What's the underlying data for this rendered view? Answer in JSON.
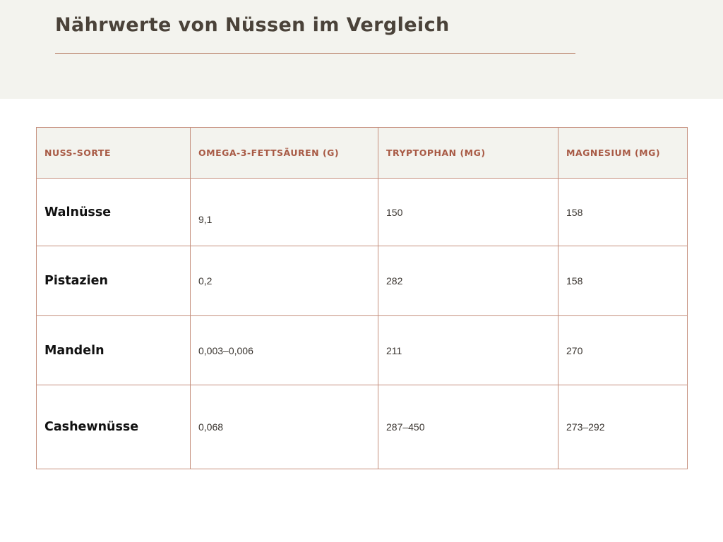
{
  "page": {
    "title": "Nährwerte von Nüssen im Vergleich"
  },
  "table": {
    "headers": [
      "NUSS-SORTE",
      "OMEGA-3-FETTSÄUREN (G)",
      "TRYPTOPHAN (MG)",
      "MAGNESIUM (MG)"
    ],
    "rows": [
      [
        "Walnüsse",
        "9,1",
        "150",
        "158"
      ],
      [
        "Pistazien",
        "0,2",
        "282",
        "158"
      ],
      [
        "Mandeln",
        "0,003–0,006",
        "211",
        "270"
      ],
      [
        "Cashewnüsse",
        "0,068",
        "287–450",
        "273–292"
      ]
    ]
  },
  "colors": {
    "header_band": "#f3f3ee",
    "title": "#4a4239",
    "accent": "#a85a45",
    "border": "#c58f7d"
  }
}
